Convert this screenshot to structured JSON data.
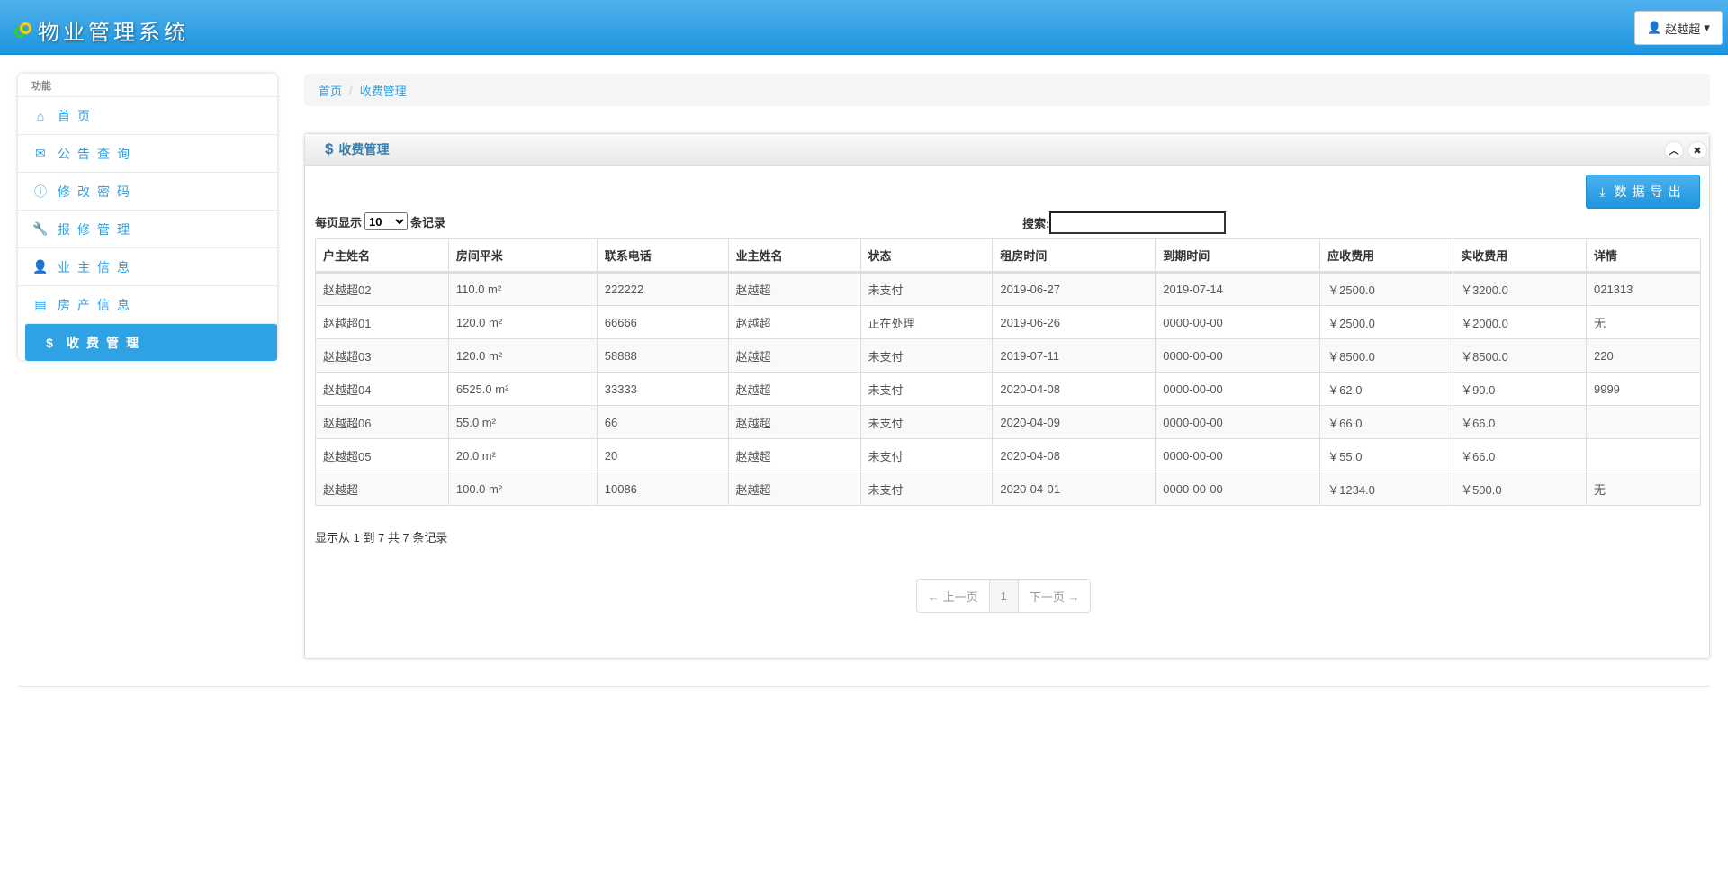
{
  "header": {
    "title": "物业管理系统",
    "user": "赵越超"
  },
  "sidebar": {
    "title": "功能",
    "items": [
      {
        "label": "首页",
        "icon": "home-icon"
      },
      {
        "label": "公告查询",
        "icon": "envelope-icon"
      },
      {
        "label": "修改密码",
        "icon": "info-icon"
      },
      {
        "label": "报修管理",
        "icon": "wrench-icon"
      },
      {
        "label": "业主信息",
        "icon": "user-icon"
      },
      {
        "label": "房产信息",
        "icon": "list-icon"
      },
      {
        "label": "收费管理",
        "icon": "dollar-icon",
        "active": true
      }
    ]
  },
  "breadcrumb": {
    "home": "首页",
    "current": "收费管理"
  },
  "panel": {
    "title": "收费管理",
    "export": "数据导出"
  },
  "controls": {
    "show_prefix": "每页显示",
    "page_size": "10",
    "show_suffix": "条记录",
    "search_label": "搜索:",
    "search_value": ""
  },
  "table": {
    "headers": [
      "户主姓名",
      "房间平米",
      "联系电话",
      "业主姓名",
      "状态",
      "租房时间",
      "到期时间",
      "应收费用",
      "实收费用",
      "详情"
    ],
    "rows": [
      [
        "赵越超02",
        "110.0 m²",
        "222222",
        "赵越超",
        "未支付",
        "2019-06-27",
        "2019-07-14",
        "￥2500.0",
        "￥3200.0",
        "021313"
      ],
      [
        "赵越超01",
        "120.0 m²",
        "66666",
        "赵越超",
        "正在处理",
        "2019-06-26",
        "0000-00-00",
        "￥2500.0",
        "￥2000.0",
        "无"
      ],
      [
        "赵越超03",
        "120.0 m²",
        "58888",
        "赵越超",
        "未支付",
        "2019-07-11",
        "0000-00-00",
        "￥8500.0",
        "￥8500.0",
        "220"
      ],
      [
        "赵越超04",
        "6525.0 m²",
        "33333",
        "赵越超",
        "未支付",
        "2020-04-08",
        "0000-00-00",
        "￥62.0",
        "￥90.0",
        "9999"
      ],
      [
        "赵越超06",
        "55.0 m²",
        "66",
        "赵越超",
        "未支付",
        "2020-04-09",
        "0000-00-00",
        "￥66.0",
        "￥66.0",
        ""
      ],
      [
        "赵越超05",
        "20.0 m²",
        "20",
        "赵越超",
        "未支付",
        "2020-04-08",
        "0000-00-00",
        "￥55.0",
        "￥66.0",
        ""
      ],
      [
        "赵越超",
        "100.0 m²",
        "10086",
        "赵越超",
        "未支付",
        "2020-04-01",
        "0000-00-00",
        "￥1234.0",
        "￥500.0",
        "无"
      ]
    ]
  },
  "info": "显示从 1 到 7 共 7 条记录",
  "pagination": {
    "prev": "← 上一页",
    "current": "1",
    "next": "下一页 →"
  }
}
